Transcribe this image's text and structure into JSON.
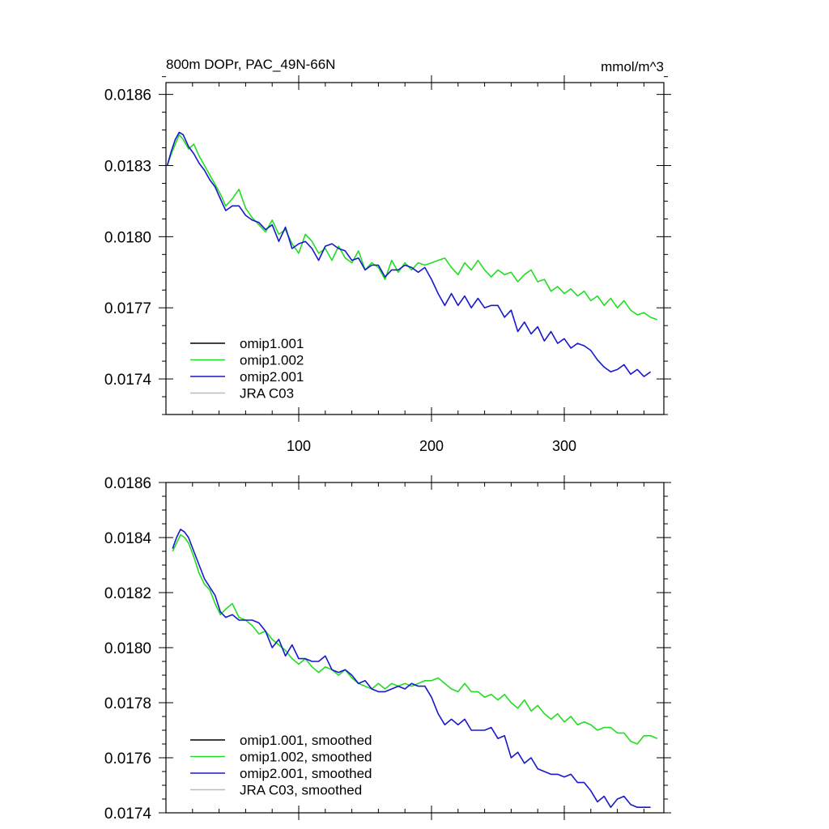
{
  "title_left": "800m DOPr, PAC_49N-66N",
  "units": "mmol/m^3",
  "chart_data": [
    {
      "type": "line",
      "panel": "top",
      "xlim": [
        0,
        375
      ],
      "ylim": [
        0.01725,
        0.01865
      ],
      "yticks": [
        0.0174,
        0.0177,
        0.018,
        0.0183,
        0.0186
      ],
      "ytick_labels": [
        "0.0174",
        "0.0177",
        "0.0180",
        "0.0183",
        "0.0186"
      ],
      "xticks": [
        100,
        200,
        300
      ],
      "xtick_labels": [
        "100",
        "200",
        "300"
      ],
      "legend": [
        "omip1.001",
        "omip1.002",
        "omip2.001",
        "JRA C03"
      ],
      "legend_placement": "bottom-left",
      "grid": false,
      "series": [
        {
          "name": "omip1.002",
          "color": "#22dd22",
          "x": [
            1,
            4,
            7,
            10,
            13,
            17,
            21,
            25,
            29,
            33,
            37,
            41,
            45,
            50,
            55,
            60,
            65,
            70,
            75,
            80,
            85,
            90,
            95,
            100,
            105,
            110,
            115,
            120,
            125,
            130,
            135,
            140,
            145,
            150,
            155,
            160,
            165,
            170,
            175,
            180,
            185,
            190,
            195,
            200,
            205,
            210,
            215,
            220,
            225,
            230,
            235,
            240,
            245,
            250,
            255,
            260,
            265,
            270,
            275,
            280,
            285,
            290,
            295,
            300,
            305,
            310,
            315,
            320,
            325,
            330,
            335,
            340,
            345,
            350,
            355,
            360,
            365,
            370
          ],
          "y": [
            0.0183,
            0.01835,
            0.01839,
            0.01843,
            0.01841,
            0.01837,
            0.01839,
            0.01834,
            0.0183,
            0.01826,
            0.01822,
            0.01818,
            0.01813,
            0.01816,
            0.0182,
            0.01812,
            0.01808,
            0.01805,
            0.01802,
            0.01807,
            0.01801,
            0.01803,
            0.01797,
            0.01793,
            0.01801,
            0.01798,
            0.01793,
            0.01795,
            0.0179,
            0.01796,
            0.01791,
            0.01789,
            0.01794,
            0.01786,
            0.01789,
            0.01787,
            0.01782,
            0.0179,
            0.01785,
            0.01789,
            0.01786,
            0.01789,
            0.01788,
            0.01789,
            0.0179,
            0.01791,
            0.01787,
            0.01784,
            0.01789,
            0.01786,
            0.0179,
            0.01786,
            0.01783,
            0.01786,
            0.01784,
            0.01785,
            0.01781,
            0.01784,
            0.01786,
            0.01781,
            0.01782,
            0.01777,
            0.01779,
            0.01776,
            0.01778,
            0.01775,
            0.01777,
            0.01773,
            0.01775,
            0.01771,
            0.01774,
            0.0177,
            0.01773,
            0.01769,
            0.01767,
            0.01768,
            0.01766,
            0.01765
          ]
        },
        {
          "name": "omip2.001",
          "color": "#1818cc",
          "x": [
            1,
            4,
            7,
            10,
            13,
            17,
            21,
            25,
            29,
            33,
            37,
            41,
            45,
            50,
            55,
            60,
            65,
            70,
            75,
            80,
            85,
            90,
            95,
            100,
            105,
            110,
            115,
            120,
            125,
            130,
            135,
            140,
            145,
            150,
            155,
            160,
            165,
            170,
            175,
            180,
            185,
            190,
            195,
            200,
            205,
            210,
            215,
            220,
            225,
            230,
            235,
            240,
            245,
            250,
            255,
            260,
            265,
            270,
            275,
            280,
            285,
            290,
            295,
            300,
            305,
            310,
            315,
            320,
            325,
            330,
            335,
            340,
            345,
            350,
            355,
            360,
            365
          ],
          "y": [
            0.0183,
            0.01836,
            0.01841,
            0.01844,
            0.01843,
            0.01838,
            0.01835,
            0.01831,
            0.01828,
            0.01824,
            0.01821,
            0.01816,
            0.01811,
            0.01813,
            0.01813,
            0.01809,
            0.01807,
            0.01806,
            0.01803,
            0.01805,
            0.01798,
            0.01804,
            0.01795,
            0.01797,
            0.01798,
            0.01795,
            0.0179,
            0.01796,
            0.01797,
            0.01795,
            0.01794,
            0.0179,
            0.01791,
            0.01786,
            0.01788,
            0.01788,
            0.01783,
            0.01786,
            0.01786,
            0.01788,
            0.01787,
            0.01785,
            0.01787,
            0.01782,
            0.01776,
            0.01771,
            0.01776,
            0.01771,
            0.01775,
            0.0177,
            0.01774,
            0.0177,
            0.01771,
            0.01771,
            0.01766,
            0.01769,
            0.0176,
            0.01764,
            0.01759,
            0.01762,
            0.01756,
            0.0176,
            0.01755,
            0.01757,
            0.01753,
            0.01755,
            0.01754,
            0.01752,
            0.01748,
            0.01745,
            0.01743,
            0.01744,
            0.01746,
            0.01742,
            0.01744,
            0.01741,
            0.01743
          ]
        }
      ]
    },
    {
      "type": "line",
      "panel": "bottom",
      "xlim": [
        0,
        375
      ],
      "ylim": [
        0.0174,
        0.0186
      ],
      "yticks": [
        0.0174,
        0.0176,
        0.0178,
        0.018,
        0.0182,
        0.0184,
        0.0186
      ],
      "ytick_labels": [
        "0.0174",
        "0.0176",
        "0.0178",
        "0.0180",
        "0.0182",
        "0.0184",
        "0.0186"
      ],
      "xticks": [
        100,
        200,
        300
      ],
      "legend": [
        "omip1.001, smoothed",
        "omip1.002, smoothed",
        "omip2.001, smoothed",
        "JRA C03, smoothed"
      ],
      "legend_placement": "bottom-left",
      "grid": false,
      "series": [
        {
          "name": "omip1.002, smoothed",
          "color": "#22dd22",
          "x": [
            5,
            8,
            11,
            14,
            17,
            21,
            25,
            29,
            33,
            37,
            41,
            45,
            50,
            55,
            60,
            65,
            70,
            75,
            80,
            85,
            90,
            95,
            100,
            105,
            110,
            115,
            120,
            125,
            130,
            135,
            140,
            145,
            150,
            155,
            160,
            165,
            170,
            175,
            180,
            185,
            190,
            195,
            200,
            205,
            210,
            215,
            220,
            225,
            230,
            235,
            240,
            245,
            250,
            255,
            260,
            265,
            270,
            275,
            280,
            285,
            290,
            295,
            300,
            305,
            310,
            315,
            320,
            325,
            330,
            335,
            340,
            345,
            350,
            355,
            360,
            365,
            370
          ],
          "y": [
            0.01835,
            0.01838,
            0.01841,
            0.0184,
            0.01838,
            0.01833,
            0.01827,
            0.01823,
            0.01821,
            0.01816,
            0.01812,
            0.01814,
            0.01816,
            0.01811,
            0.0181,
            0.01808,
            0.01805,
            0.01806,
            0.01803,
            0.01801,
            0.01799,
            0.01796,
            0.01794,
            0.01796,
            0.01793,
            0.01791,
            0.01793,
            0.01792,
            0.0179,
            0.01792,
            0.01789,
            0.01787,
            0.01786,
            0.01785,
            0.01787,
            0.01785,
            0.01787,
            0.01786,
            0.01787,
            0.01786,
            0.01787,
            0.01788,
            0.01788,
            0.01789,
            0.01787,
            0.01785,
            0.01784,
            0.01787,
            0.01784,
            0.01784,
            0.01782,
            0.01783,
            0.01781,
            0.01783,
            0.0178,
            0.01778,
            0.01781,
            0.01777,
            0.01779,
            0.01776,
            0.01774,
            0.01776,
            0.01773,
            0.01775,
            0.01772,
            0.01773,
            0.01772,
            0.0177,
            0.01771,
            0.01771,
            0.01769,
            0.01769,
            0.01766,
            0.01765,
            0.01768,
            0.01768,
            0.01767
          ]
        },
        {
          "name": "omip2.001, smoothed",
          "color": "#1818cc",
          "x": [
            5,
            8,
            11,
            14,
            17,
            21,
            25,
            29,
            33,
            37,
            41,
            45,
            50,
            55,
            60,
            65,
            70,
            75,
            80,
            85,
            90,
            95,
            100,
            105,
            110,
            115,
            120,
            125,
            130,
            135,
            140,
            145,
            150,
            155,
            160,
            165,
            170,
            175,
            180,
            185,
            190,
            195,
            200,
            205,
            210,
            215,
            220,
            225,
            230,
            235,
            240,
            245,
            250,
            255,
            260,
            265,
            270,
            275,
            280,
            285,
            290,
            295,
            300,
            305,
            310,
            315,
            320,
            325,
            330,
            335,
            340,
            345,
            350,
            355,
            360,
            365
          ],
          "y": [
            0.01836,
            0.0184,
            0.01843,
            0.01842,
            0.0184,
            0.01835,
            0.0183,
            0.01825,
            0.01822,
            0.01819,
            0.01813,
            0.01811,
            0.01812,
            0.0181,
            0.0181,
            0.0181,
            0.01809,
            0.01806,
            0.018,
            0.01803,
            0.01797,
            0.01801,
            0.01796,
            0.01796,
            0.01795,
            0.01795,
            0.01797,
            0.01792,
            0.01791,
            0.01792,
            0.0179,
            0.01787,
            0.01788,
            0.01785,
            0.01784,
            0.01784,
            0.01785,
            0.01786,
            0.01785,
            0.01787,
            0.01786,
            0.01786,
            0.01782,
            0.01776,
            0.01772,
            0.01774,
            0.01772,
            0.01774,
            0.0177,
            0.0177,
            0.0177,
            0.01771,
            0.01767,
            0.01768,
            0.0176,
            0.01762,
            0.01758,
            0.0176,
            0.01756,
            0.01755,
            0.01754,
            0.01754,
            0.01753,
            0.01754,
            0.01751,
            0.01751,
            0.01748,
            0.01744,
            0.01746,
            0.01742,
            0.01745,
            0.01746,
            0.01743,
            0.01742,
            0.01742,
            0.01742
          ]
        }
      ]
    }
  ]
}
